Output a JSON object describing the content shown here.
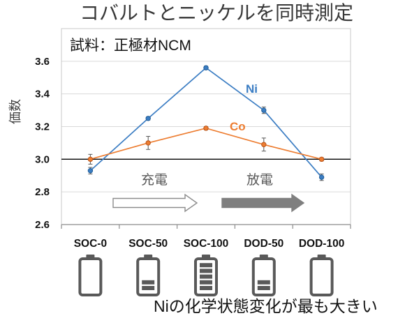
{
  "chart_data": {
    "type": "line",
    "title": "コバルトとニッケルを同時測定",
    "sample_label": "試料：正極材NCM",
    "ylabel": "価数",
    "categories": [
      "SOC-0",
      "SOC-50",
      "SOC-100",
      "DOD-50",
      "DOD-100"
    ],
    "yticks": [
      "2.6",
      "2.8",
      "3.0",
      "3.2",
      "3.4",
      "3.6"
    ],
    "ylim": [
      2.6,
      3.8
    ],
    "grid": true,
    "reference_line": 3.0,
    "reference_line_color": "#000000",
    "series": [
      {
        "name": "Ni",
        "color": "#3b7dc3",
        "values": [
          2.93,
          3.25,
          3.56,
          3.3,
          2.89
        ],
        "errors": [
          0.02,
          0.01,
          0.01,
          0.02,
          0.02
        ]
      },
      {
        "name": "Co",
        "color": "#ed7d31",
        "values": [
          3.0,
          3.1,
          3.19,
          3.09,
          3.0
        ],
        "errors": [
          0.03,
          0.04,
          0.01,
          0.04,
          0.01
        ]
      }
    ],
    "phases": [
      {
        "label": "充電",
        "arrow_icon": "outline-arrow-right-icon",
        "arrow_color": "#ffffff"
      },
      {
        "label": "放電",
        "arrow_icon": "filled-arrow-right-icon",
        "arrow_color": "#7f7f7f"
      }
    ],
    "battery_icon": "battery-icon",
    "battery_charge_levels": [
      0,
      0.4,
      1,
      0.4,
      0
    ]
  },
  "footer": "Niの化学状態変化が最も大きい"
}
